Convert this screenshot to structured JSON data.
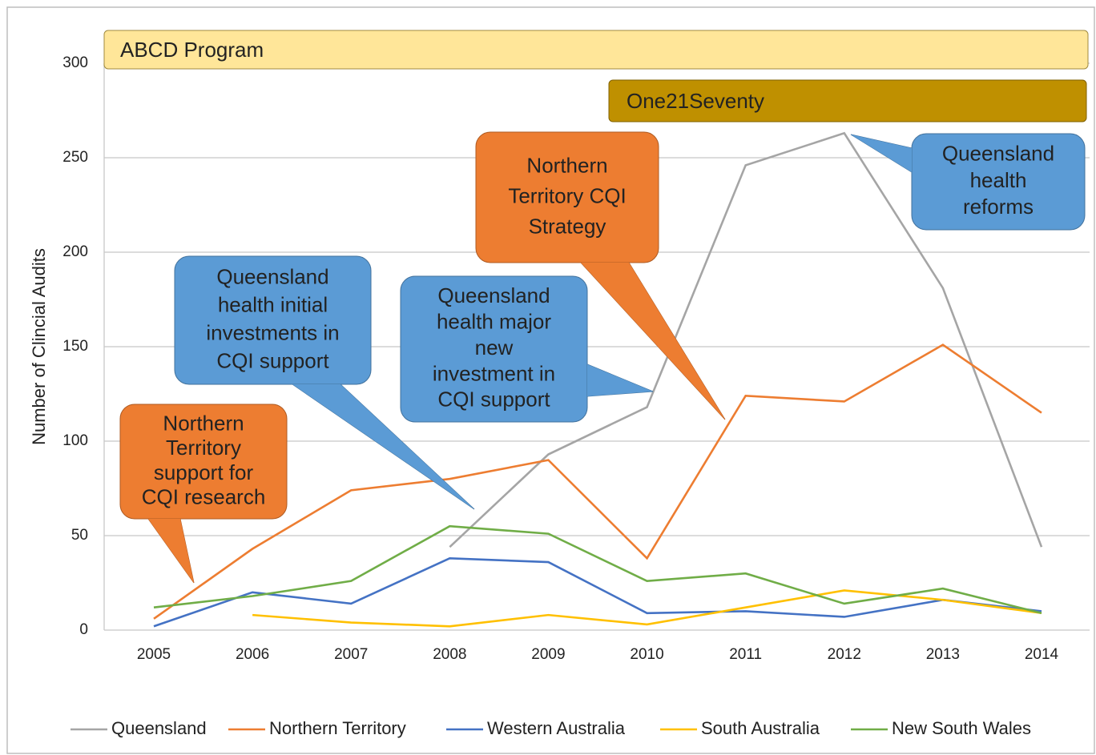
{
  "chart_data": {
    "type": "line",
    "y_label": "Number of Clincial Audits",
    "categories": [
      "2005",
      "2006",
      "2007",
      "2008",
      "2009",
      "2010",
      "2011",
      "2012",
      "2013",
      "2014"
    ],
    "ylim": [
      0,
      300
    ],
    "yticks": [
      0,
      50,
      100,
      150,
      200,
      250,
      300
    ],
    "grid": true,
    "legend": "bottom",
    "series": [
      {
        "name": "Queensland",
        "color": "#a5a5a5",
        "values": [
          null,
          null,
          null,
          44,
          93,
          118,
          246,
          263,
          181,
          44
        ]
      },
      {
        "name": "Northern Territory",
        "color": "#ed7d31",
        "values": [
          6,
          43,
          74,
          80,
          90,
          38,
          124,
          121,
          151,
          115
        ]
      },
      {
        "name": "Western Australia",
        "color": "#4472c4",
        "values": [
          2,
          20,
          14,
          38,
          36,
          9,
          10,
          7,
          16,
          10
        ]
      },
      {
        "name": "South Australia",
        "color": "#ffc000",
        "values": [
          null,
          8,
          4,
          2,
          8,
          3,
          12,
          21,
          16,
          9
        ]
      },
      {
        "name": "New South Wales",
        "color": "#70ad47",
        "values": [
          12,
          18,
          26,
          55,
          51,
          26,
          30,
          14,
          22,
          9
        ]
      }
    ],
    "programs": [
      {
        "label": "ABCD Program",
        "color": "#ffe699"
      },
      {
        "label": "One21Seventy",
        "color": "#bf9000"
      }
    ],
    "annotations": [
      {
        "lines": [
          "Northern",
          "Territory",
          "support for",
          "CQI research"
        ],
        "color": "#ed7d31"
      },
      {
        "lines": [
          "Queensland",
          "health initial",
          "investments in",
          "CQI support"
        ],
        "color": "#5b9bd5"
      },
      {
        "lines": [
          "Queensland",
          "health major",
          "new",
          "investment in",
          "CQI support"
        ],
        "color": "#5b9bd5"
      },
      {
        "lines": [
          "Northern",
          "Territory CQI",
          "Strategy"
        ],
        "color": "#ed7d31"
      },
      {
        "lines": [
          "Queensland",
          "health",
          "reforms"
        ],
        "color": "#5b9bd5"
      }
    ]
  }
}
